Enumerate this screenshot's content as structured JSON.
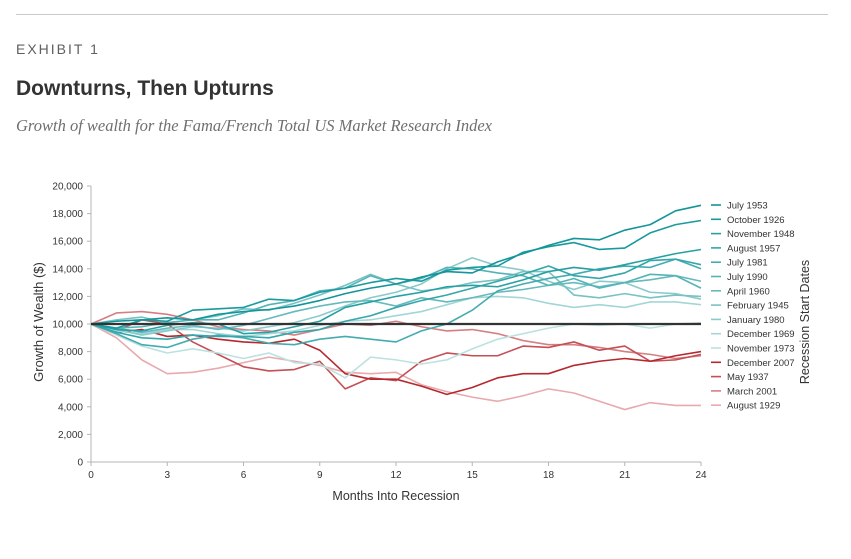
{
  "exhibit": "EXHIBIT 1",
  "title": "Downturns, Then Upturns",
  "subtitle": "Growth of wealth for the Fama/French Total US Market Research Index",
  "chart_data": {
    "type": "line",
    "xlabel": "Months Into Recession",
    "ylabel": "Growth of Wealth ($)",
    "legend_title": "Recession Start Dates",
    "legend_position": "right",
    "xlim": [
      0,
      24
    ],
    "ylim": [
      0,
      20000
    ],
    "x_ticks": [
      0,
      3,
      6,
      9,
      12,
      15,
      18,
      21,
      24
    ],
    "y_ticks": [
      0,
      2000,
      4000,
      6000,
      8000,
      10000,
      12000,
      14000,
      16000,
      18000,
      20000
    ],
    "y_tick_labels": [
      "0",
      "2,000",
      "4,000",
      "6,000",
      "8,000",
      "10,000",
      "12,000",
      "14,000",
      "16,000",
      "18,000",
      "20,000"
    ],
    "x": [
      0,
      1,
      2,
      3,
      4,
      5,
      6,
      7,
      8,
      9,
      10,
      11,
      12,
      13,
      14,
      15,
      16,
      17,
      18,
      19,
      20,
      21,
      22,
      23,
      24
    ],
    "baseline": 10000,
    "baseline_color": "#333333",
    "series": [
      {
        "name": "July 1953",
        "color": "#13959a",
        "values": [
          10000,
          10200,
          10300,
          10450,
          10300,
          10700,
          10900,
          11050,
          11300,
          11700,
          12200,
          12600,
          12900,
          13400,
          13800,
          13700,
          14500,
          15100,
          15700,
          16200,
          16100,
          16800,
          17200,
          18200,
          18600
        ]
      },
      {
        "name": "October 1926",
        "color": "#1a9a9f",
        "values": [
          10000,
          9700,
          10300,
          10200,
          11000,
          11100,
          11200,
          11800,
          11700,
          12300,
          12600,
          13000,
          13300,
          13100,
          13900,
          14100,
          14200,
          15200,
          15600,
          15900,
          15400,
          15500,
          16600,
          17200,
          17500
        ]
      },
      {
        "name": "November 1948",
        "color": "#27a0a4",
        "values": [
          10000,
          9600,
          9500,
          9900,
          10100,
          10000,
          9300,
          9400,
          9800,
          10200,
          11200,
          11600,
          12000,
          12300,
          12700,
          12800,
          12700,
          13200,
          13800,
          14100,
          13900,
          14300,
          14700,
          15100,
          15400
        ]
      },
      {
        "name": "August 1957",
        "color": "#35a6aa",
        "values": [
          10000,
          9400,
          9000,
          8900,
          9200,
          9100,
          9100,
          9000,
          9400,
          9600,
          10200,
          10600,
          11200,
          11700,
          12100,
          12600,
          13100,
          13600,
          14200,
          13500,
          13300,
          13700,
          14600,
          14700,
          14300
        ]
      },
      {
        "name": "July 1981",
        "color": "#44acb0",
        "values": [
          10000,
          9300,
          8500,
          8300,
          8900,
          9200,
          9000,
          8600,
          8500,
          8900,
          9100,
          8900,
          8700,
          9500,
          10000,
          11000,
          12400,
          12900,
          13300,
          13600,
          14000,
          14200,
          14100,
          14700,
          14000
        ]
      },
      {
        "name": "July 1990",
        "color": "#55b3b6",
        "values": [
          10000,
          9700,
          9800,
          10100,
          10300,
          10300,
          10800,
          11400,
          11700,
          12400,
          12600,
          13500,
          12900,
          13300,
          14100,
          14000,
          13700,
          13500,
          12800,
          13300,
          12600,
          13000,
          13600,
          13500,
          12600
        ]
      },
      {
        "name": "April 1960",
        "color": "#66babd",
        "values": [
          10000,
          9700,
          9400,
          9700,
          9900,
          9600,
          9900,
          10400,
          10900,
          11300,
          11600,
          11700,
          11300,
          11900,
          11600,
          11900,
          12300,
          12500,
          12800,
          13000,
          12700,
          13000,
          13200,
          13500,
          13100
        ]
      },
      {
        "name": "February 1945",
        "color": "#78c2c4",
        "values": [
          10000,
          10300,
          10500,
          10100,
          10300,
          10600,
          11100,
          11000,
          11500,
          12100,
          12800,
          13600,
          12900,
          12400,
          12600,
          13000,
          13200,
          13800,
          13800,
          12100,
          11900,
          12200,
          11900,
          12100,
          12000
        ]
      },
      {
        "name": "January 1980",
        "color": "#8bcacb",
        "values": [
          10000,
          9600,
          9200,
          9500,
          9800,
          9700,
          9500,
          9800,
          10100,
          10600,
          11300,
          11900,
          12300,
          12900,
          14000,
          14800,
          14200,
          13900,
          13100,
          12500,
          13100,
          13000,
          12300,
          12200,
          11800
        ]
      },
      {
        "name": "December 1969",
        "color": "#a3d6d6",
        "values": [
          10000,
          9500,
          9300,
          9600,
          9600,
          9300,
          9100,
          9300,
          9500,
          9900,
          10200,
          10300,
          10600,
          10900,
          11400,
          11900,
          12000,
          11900,
          11500,
          11200,
          11400,
          11200,
          11600,
          11600,
          11400
        ]
      },
      {
        "name": "November 1973",
        "color": "#bce1e1",
        "values": [
          10000,
          9200,
          8400,
          7900,
          8200,
          7900,
          7500,
          7900,
          7200,
          7100,
          6100,
          7600,
          7400,
          7100,
          7400,
          8200,
          8900,
          9300,
          9700,
          10000,
          9900,
          10000,
          9700,
          10000,
          10100
        ]
      },
      {
        "name": "December 2007",
        "color": "#b5282e",
        "values": [
          10000,
          9400,
          9600,
          9100,
          9200,
          8900,
          8700,
          8600,
          8900,
          8100,
          6400,
          6000,
          6000,
          5500,
          4900,
          5400,
          6100,
          6400,
          6400,
          7000,
          7300,
          7500,
          7300,
          7700,
          8000
        ]
      },
      {
        "name": "May 1937",
        "color": "#c44f55",
        "values": [
          10000,
          9500,
          10300,
          10000,
          8700,
          7800,
          6900,
          6600,
          6700,
          7300,
          5300,
          6100,
          5900,
          7300,
          7900,
          7700,
          7700,
          8400,
          8300,
          8700,
          8100,
          8400,
          7300,
          7400,
          7800
        ]
      },
      {
        "name": "March 2001",
        "color": "#d67f83",
        "values": [
          10000,
          10800,
          10900,
          10700,
          10300,
          9800,
          9600,
          9500,
          9200,
          9600,
          10000,
          9900,
          10200,
          9800,
          9500,
          9600,
          9300,
          8800,
          8500,
          8500,
          8300,
          8000,
          7800,
          7500,
          7700
        ]
      },
      {
        "name": "August 1929",
        "color": "#e8aaae",
        "values": [
          10000,
          9000,
          7400,
          6400,
          6500,
          6800,
          7200,
          7600,
          7300,
          7000,
          6500,
          6400,
          6500,
          5600,
          5100,
          4700,
          4400,
          4800,
          5300,
          5000,
          4400,
          3800,
          4300,
          4100,
          4100
        ]
      }
    ]
  }
}
